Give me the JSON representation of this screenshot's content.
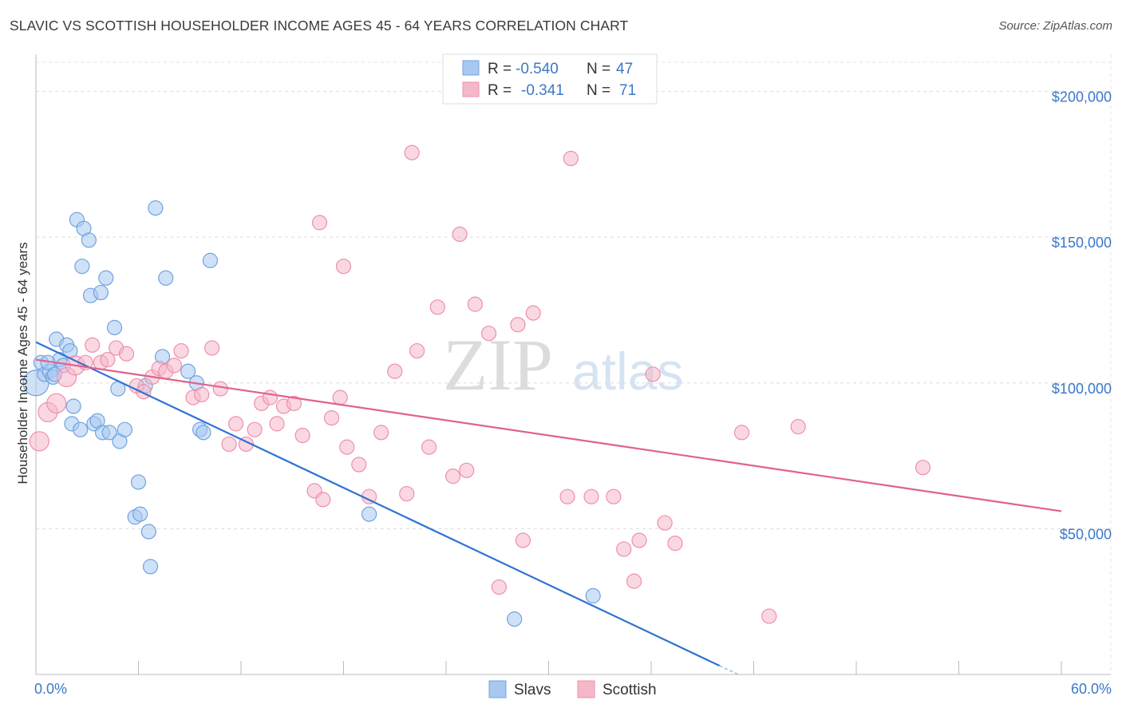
{
  "title": "SLAVIC VS SCOTTISH HOUSEHOLDER INCOME AGES 45 - 64 YEARS CORRELATION CHART",
  "source": "Source: ZipAtlas.com",
  "watermark": {
    "zip": "ZIP",
    "atlas": "atlas"
  },
  "legend_top": [
    {
      "r_label": "R =",
      "r_value": "-0.540",
      "n_label": "N =",
      "n_value": "47",
      "color": "#a8c8f0"
    },
    {
      "r_label": "R =",
      "r_value": "-0.341",
      "n_label": "N =",
      "n_value": "71",
      "color": "#f5b8c8"
    }
  ],
  "legend_bottom": [
    {
      "label": "Slavs",
      "color": "#a8c8f0"
    },
    {
      "label": "Scottish",
      "color": "#f5b8c8"
    }
  ],
  "chart_data": {
    "type": "scatter",
    "title": "SLAVIC VS SCOTTISH HOUSEHOLDER INCOME AGES 45 - 64 YEARS CORRELATION CHART",
    "xlabel": "",
    "ylabel": "Householder Income Ages 45 - 64 years",
    "xlim": [
      0,
      60
    ],
    "ylim": [
      0,
      210000
    ],
    "x_tick_labels": [
      "0.0%",
      "60.0%"
    ],
    "y_ticks": [
      50000,
      100000,
      150000,
      200000
    ],
    "y_tick_labels": [
      "$50,000",
      "$100,000",
      "$150,000",
      "$200,000"
    ],
    "grid": true,
    "series": [
      {
        "name": "Slavs",
        "color": "#6fa3e0",
        "fill": "#a8c8f0",
        "trend": {
          "x0": 0,
          "y0": 114000,
          "x1": 40,
          "y1": 3000,
          "color": "#2f72d4"
        },
        "points": [
          [
            0.0,
            100000,
            16
          ],
          [
            0.3,
            107000,
            9
          ],
          [
            0.5,
            103000,
            9
          ],
          [
            0.8,
            104000,
            9
          ],
          [
            1.0,
            102000,
            9
          ],
          [
            1.2,
            115000,
            9
          ],
          [
            1.4,
            108000,
            9
          ],
          [
            1.6,
            106000,
            9
          ],
          [
            1.8,
            113000,
            9
          ],
          [
            2.0,
            111000,
            9
          ],
          [
            2.2,
            92000,
            9
          ],
          [
            2.1,
            86000,
            9
          ],
          [
            2.6,
            84000,
            9
          ],
          [
            2.4,
            156000,
            9
          ],
          [
            2.8,
            153000,
            9
          ],
          [
            3.1,
            149000,
            9
          ],
          [
            2.7,
            140000,
            9
          ],
          [
            3.2,
            130000,
            9
          ],
          [
            3.8,
            131000,
            9
          ],
          [
            4.1,
            136000,
            9
          ],
          [
            4.6,
            119000,
            9
          ],
          [
            3.4,
            86000,
            9
          ],
          [
            3.6,
            87000,
            9
          ],
          [
            3.9,
            83000,
            9
          ],
          [
            4.3,
            83000,
            9
          ],
          [
            4.8,
            98000,
            9
          ],
          [
            4.9,
            80000,
            9
          ],
          [
            5.2,
            84000,
            9
          ],
          [
            5.8,
            54000,
            9
          ],
          [
            6.0,
            66000,
            9
          ],
          [
            6.1,
            55000,
            9
          ],
          [
            6.4,
            99000,
            9
          ],
          [
            6.6,
            49000,
            9
          ],
          [
            6.7,
            37000,
            9
          ],
          [
            7.0,
            160000,
            9
          ],
          [
            7.4,
            109000,
            9
          ],
          [
            7.6,
            136000,
            9
          ],
          [
            8.9,
            104000,
            9
          ],
          [
            9.4,
            100000,
            9
          ],
          [
            9.6,
            84000,
            9
          ],
          [
            9.8,
            83000,
            9
          ],
          [
            10.2,
            142000,
            9
          ],
          [
            19.5,
            55000,
            9
          ],
          [
            28.0,
            19000,
            9
          ],
          [
            32.6,
            27000,
            9
          ],
          [
            1.1,
            103000,
            9
          ],
          [
            0.7,
            107000,
            9
          ]
        ]
      },
      {
        "name": "Scottish",
        "color": "#ee8fab",
        "fill": "#f5b8c8",
        "trend": {
          "x0": 0,
          "y0": 108000,
          "x1": 60,
          "y1": 56000,
          "color": "#e0628c"
        },
        "points": [
          [
            0.2,
            80000,
            12
          ],
          [
            0.7,
            90000,
            12
          ],
          [
            1.2,
            93000,
            12
          ],
          [
            1.8,
            102000,
            12
          ],
          [
            2.3,
            106000,
            12
          ],
          [
            2.9,
            107000,
            9
          ],
          [
            3.3,
            113000,
            9
          ],
          [
            3.8,
            107000,
            9
          ],
          [
            4.2,
            108000,
            9
          ],
          [
            4.7,
            112000,
            9
          ],
          [
            5.3,
            110000,
            9
          ],
          [
            5.9,
            99000,
            9
          ],
          [
            6.3,
            97000,
            9
          ],
          [
            6.8,
            102000,
            9
          ],
          [
            7.2,
            105000,
            9
          ],
          [
            7.6,
            104000,
            9
          ],
          [
            8.1,
            106000,
            9
          ],
          [
            8.5,
            111000,
            9
          ],
          [
            9.2,
            95000,
            9
          ],
          [
            9.7,
            96000,
            9
          ],
          [
            10.3,
            112000,
            9
          ],
          [
            10.8,
            98000,
            9
          ],
          [
            11.3,
            79000,
            9
          ],
          [
            11.7,
            86000,
            9
          ],
          [
            12.3,
            79000,
            9
          ],
          [
            12.8,
            84000,
            9
          ],
          [
            13.2,
            93000,
            9
          ],
          [
            13.7,
            95000,
            9
          ],
          [
            14.1,
            86000,
            9
          ],
          [
            14.5,
            92000,
            9
          ],
          [
            15.1,
            93000,
            9
          ],
          [
            15.6,
            82000,
            9
          ],
          [
            16.3,
            63000,
            9
          ],
          [
            16.6,
            155000,
            9
          ],
          [
            16.8,
            60000,
            9
          ],
          [
            17.3,
            88000,
            9
          ],
          [
            17.8,
            95000,
            9
          ],
          [
            18.0,
            140000,
            9
          ],
          [
            18.2,
            78000,
            9
          ],
          [
            18.9,
            72000,
            9
          ],
          [
            19.5,
            61000,
            9
          ],
          [
            20.2,
            83000,
            9
          ],
          [
            21.0,
            104000,
            9
          ],
          [
            21.7,
            62000,
            9
          ],
          [
            22.0,
            179000,
            9
          ],
          [
            22.3,
            111000,
            9
          ],
          [
            23.0,
            78000,
            9
          ],
          [
            23.5,
            126000,
            9
          ],
          [
            24.4,
            68000,
            9
          ],
          [
            25.2,
            70000,
            9
          ],
          [
            24.8,
            151000,
            9
          ],
          [
            25.7,
            127000,
            9
          ],
          [
            26.5,
            117000,
            9
          ],
          [
            27.1,
            30000,
            9
          ],
          [
            28.2,
            120000,
            9
          ],
          [
            28.5,
            46000,
            9
          ],
          [
            29.1,
            124000,
            9
          ],
          [
            31.1,
            61000,
            9
          ],
          [
            31.3,
            177000,
            9
          ],
          [
            32.5,
            61000,
            9
          ],
          [
            33.8,
            61000,
            9
          ],
          [
            34.4,
            43000,
            9
          ],
          [
            35.0,
            32000,
            9
          ],
          [
            35.3,
            46000,
            9
          ],
          [
            36.1,
            103000,
            9
          ],
          [
            36.8,
            52000,
            9
          ],
          [
            37.4,
            45000,
            9
          ],
          [
            41.3,
            83000,
            9
          ],
          [
            42.9,
            20000,
            9
          ],
          [
            44.6,
            85000,
            9
          ],
          [
            51.9,
            71000,
            9
          ]
        ]
      }
    ]
  }
}
